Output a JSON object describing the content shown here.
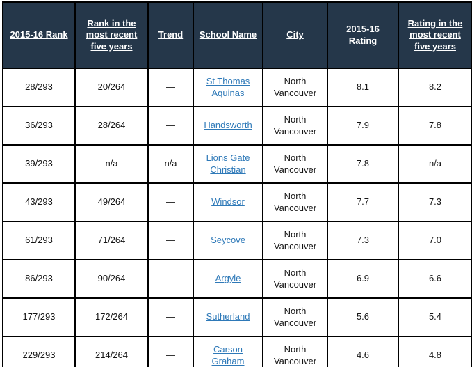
{
  "table": {
    "columns": [
      {
        "name": "rank-2015-16",
        "label": "2015-16 Rank"
      },
      {
        "name": "rank-recent-five",
        "label": "Rank in the most recent five years"
      },
      {
        "name": "trend",
        "label": "Trend"
      },
      {
        "name": "school-name",
        "label": "School Name"
      },
      {
        "name": "city",
        "label": "City"
      },
      {
        "name": "rating-2015-16",
        "label": "2015-16 Rating"
      },
      {
        "name": "rating-recent-five",
        "label": "Rating in the most recent five years"
      }
    ],
    "rows": [
      [
        "28/293",
        "20/264",
        "—",
        "St Thomas Aquinas",
        "North Vancouver",
        "8.1",
        "8.2"
      ],
      [
        "36/293",
        "28/264",
        "—",
        "Handsworth",
        "North Vancouver",
        "7.9",
        "7.8"
      ],
      [
        "39/293",
        "n/a",
        "n/a",
        "Lions Gate Christian",
        "North Vancouver",
        "7.8",
        "n/a"
      ],
      [
        "43/293",
        "49/264",
        "—",
        "Windsor",
        "North Vancouver",
        "7.7",
        "7.3"
      ],
      [
        "61/293",
        "71/264",
        "—",
        "Seycove",
        "North Vancouver",
        "7.3",
        "7.0"
      ],
      [
        "86/293",
        "90/264",
        "—",
        "Argyle",
        "North Vancouver",
        "6.9",
        "6.6"
      ],
      [
        "177/293",
        "172/264",
        "—",
        "Sutherland",
        "North Vancouver",
        "5.6",
        "5.4"
      ],
      [
        "229/293",
        "214/264",
        "—",
        "Carson Graham",
        "North Vancouver",
        "4.6",
        "4.8"
      ]
    ]
  },
  "chart_data": {
    "type": "table",
    "title": "",
    "columns": [
      "2015-16 Rank",
      "Rank in the most recent five years",
      "Trend",
      "School Name",
      "City",
      "2015-16 Rating",
      "Rating in the most recent five years"
    ],
    "rows": [
      [
        "28/293",
        "20/264",
        "—",
        "St Thomas Aquinas",
        "North Vancouver",
        "8.1",
        "8.2"
      ],
      [
        "36/293",
        "28/264",
        "—",
        "Handsworth",
        "North Vancouver",
        "7.9",
        "7.8"
      ],
      [
        "39/293",
        "n/a",
        "n/a",
        "Lions Gate Christian",
        "North Vancouver",
        "7.8",
        "n/a"
      ],
      [
        "43/293",
        "49/264",
        "—",
        "Windsor",
        "North Vancouver",
        "7.7",
        "7.3"
      ],
      [
        "61/293",
        "71/264",
        "—",
        "Seycove",
        "North Vancouver",
        "7.3",
        "7.0"
      ],
      [
        "86/293",
        "90/264",
        "—",
        "Argyle",
        "North Vancouver",
        "6.9",
        "6.6"
      ],
      [
        "177/293",
        "172/264",
        "—",
        "Sutherland",
        "North Vancouver",
        "5.6",
        "5.4"
      ],
      [
        "229/293",
        "214/264",
        "—",
        "Carson Graham",
        "North Vancouver",
        "4.6",
        "4.8"
      ]
    ]
  },
  "colors": {
    "header_bg": "#25374a",
    "header_text": "#ffffff",
    "link": "#2e79b8",
    "border": "#000000",
    "body_text": "#141414",
    "row_bg": "#ffffff"
  }
}
